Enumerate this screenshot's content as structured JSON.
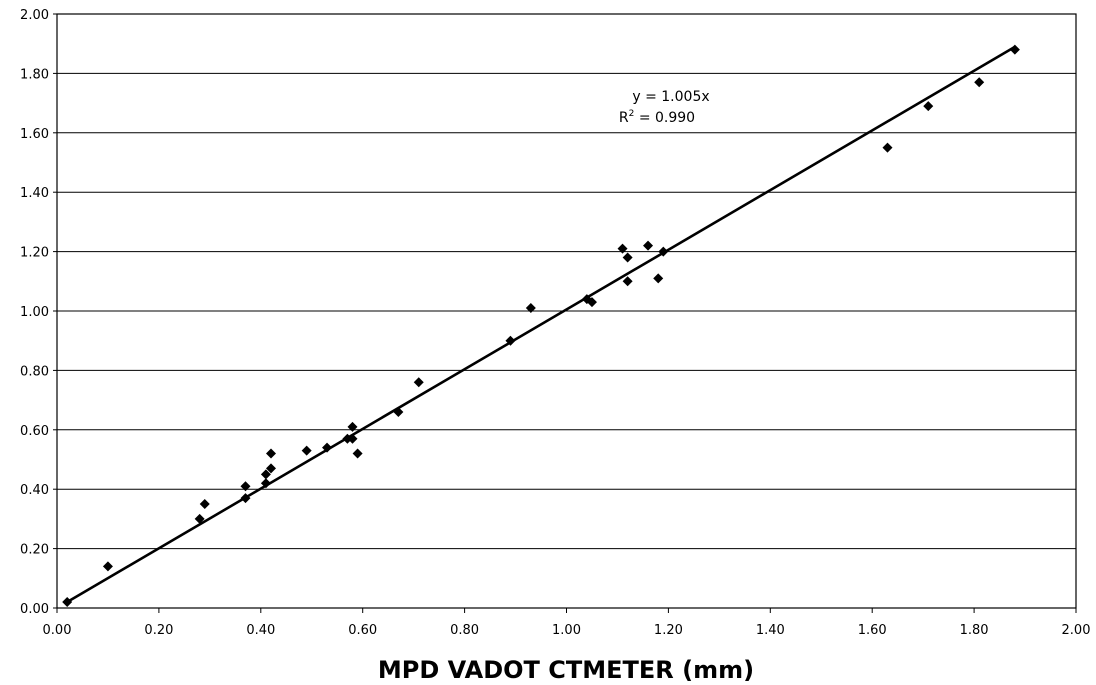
{
  "chart_data": {
    "type": "scatter",
    "title": "",
    "xlabel": "MPD VADOT CTMETER (mm)",
    "ylabel": "",
    "xlim": [
      0,
      2.0
    ],
    "ylim": [
      0,
      2.0
    ],
    "x_ticks": [
      "0.00",
      "0.20",
      "0.40",
      "0.60",
      "0.80",
      "1.00",
      "1.20",
      "1.40",
      "1.60",
      "1.80",
      "2.00"
    ],
    "y_ticks": [
      "0.00",
      "0.20",
      "0.40",
      "0.60",
      "0.80",
      "1.00",
      "1.20",
      "1.40",
      "1.60",
      "1.80",
      "2.00"
    ],
    "grid": "horizontal",
    "legend": "none",
    "marker": "diamond",
    "colors": {
      "marker": "#000000",
      "trendline": "#000000",
      "grid": "#000000"
    },
    "series": [
      {
        "name": "",
        "points": [
          {
            "x": 0.02,
            "y": 0.02
          },
          {
            "x": 0.1,
            "y": 0.14
          },
          {
            "x": 0.28,
            "y": 0.3
          },
          {
            "x": 0.29,
            "y": 0.35
          },
          {
            "x": 0.37,
            "y": 0.41
          },
          {
            "x": 0.37,
            "y": 0.37
          },
          {
            "x": 0.41,
            "y": 0.42
          },
          {
            "x": 0.41,
            "y": 0.45
          },
          {
            "x": 0.42,
            "y": 0.47
          },
          {
            "x": 0.42,
            "y": 0.52
          },
          {
            "x": 0.49,
            "y": 0.53
          },
          {
            "x": 0.53,
            "y": 0.54
          },
          {
            "x": 0.57,
            "y": 0.57
          },
          {
            "x": 0.58,
            "y": 0.61
          },
          {
            "x": 0.58,
            "y": 0.57
          },
          {
            "x": 0.59,
            "y": 0.52
          },
          {
            "x": 0.67,
            "y": 0.66
          },
          {
            "x": 0.71,
            "y": 0.76
          },
          {
            "x": 0.89,
            "y": 0.9
          },
          {
            "x": 0.93,
            "y": 1.01
          },
          {
            "x": 1.04,
            "y": 1.04
          },
          {
            "x": 1.05,
            "y": 1.03
          },
          {
            "x": 1.11,
            "y": 1.21
          },
          {
            "x": 1.12,
            "y": 1.18
          },
          {
            "x": 1.12,
            "y": 1.1
          },
          {
            "x": 1.16,
            "y": 1.22
          },
          {
            "x": 1.18,
            "y": 1.11
          },
          {
            "x": 1.19,
            "y": 1.2
          },
          {
            "x": 1.63,
            "y": 1.55
          },
          {
            "x": 1.71,
            "y": 1.69
          },
          {
            "x": 1.81,
            "y": 1.77
          },
          {
            "x": 1.88,
            "y": 1.88
          }
        ]
      }
    ],
    "trendline": {
      "type": "linear",
      "slope": 1.005,
      "intercept": 0,
      "x_range": [
        0.02,
        1.88
      ],
      "equation_label": "y = 1.005x",
      "r2_label_prefix": "R",
      "r2_label_sup": "2",
      "r2_label_suffix": " = 0.990"
    }
  }
}
